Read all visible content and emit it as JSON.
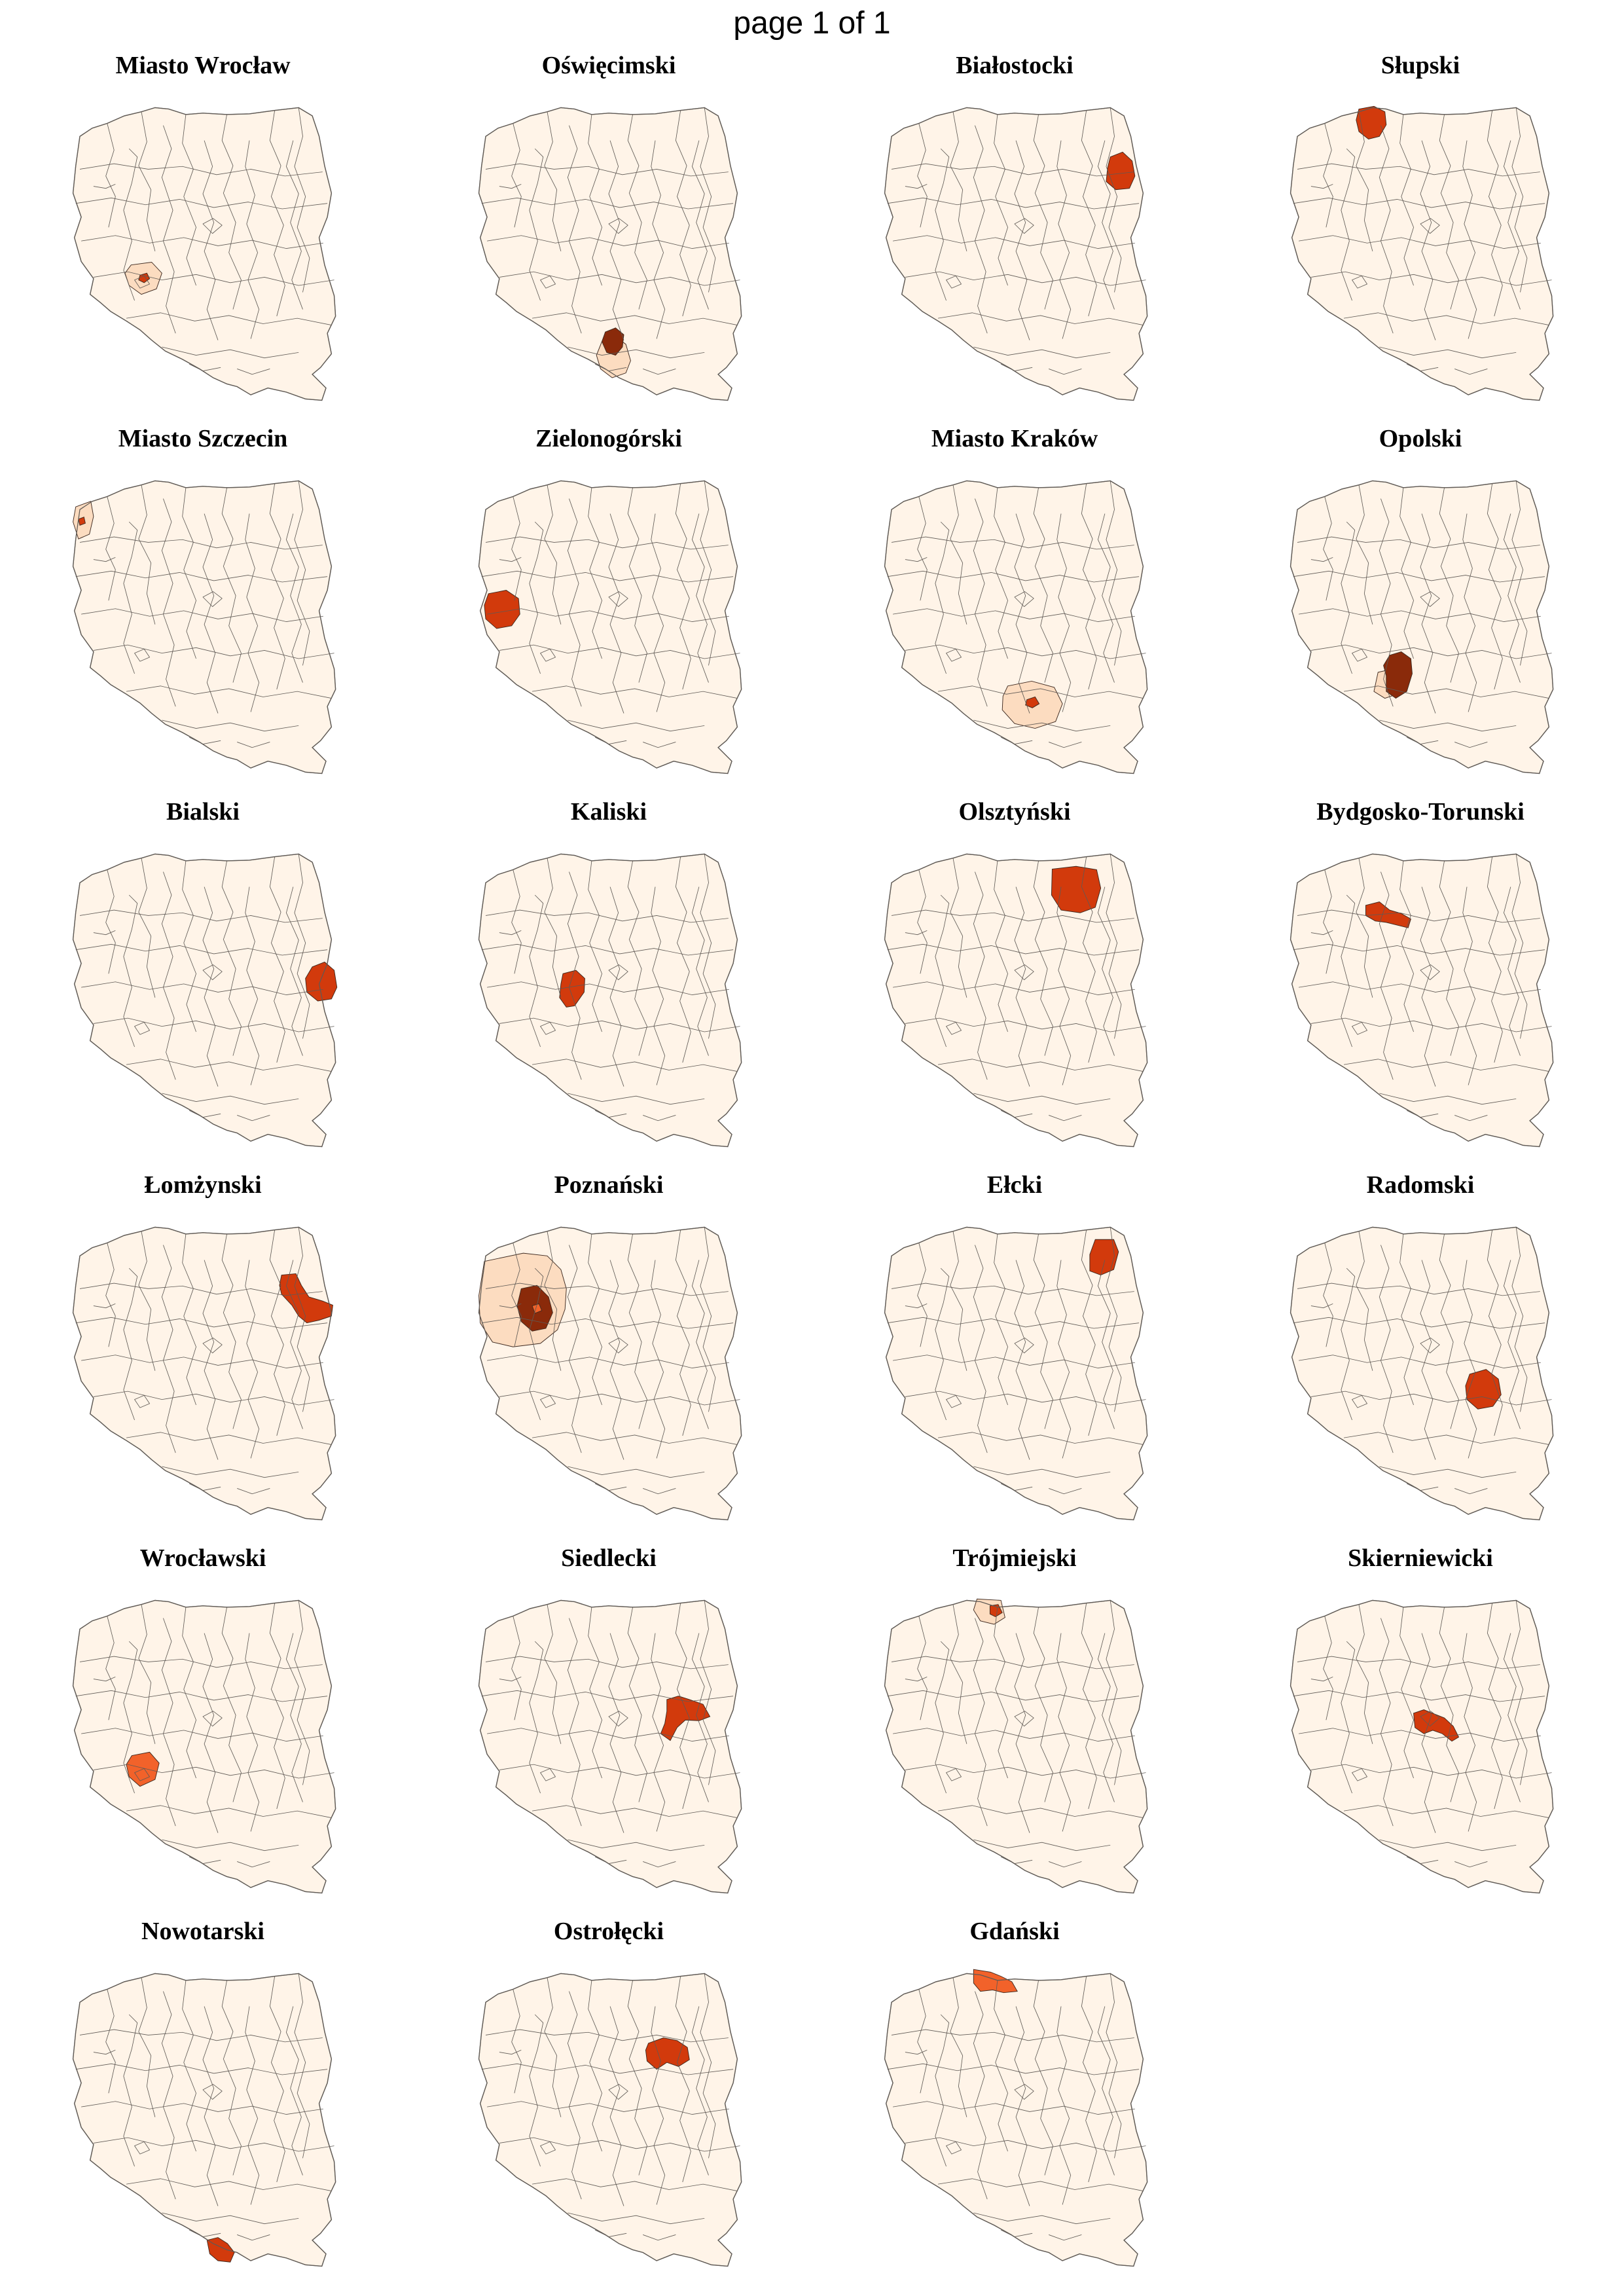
{
  "page": {
    "header": "page 1 of 1"
  },
  "colors": {
    "base": "#fff4e8",
    "border": "#5f5a55",
    "outline": "#8c8782",
    "light": "#fcdcc0",
    "medium": "#f2622a",
    "strong": "#d23a0c",
    "dark": "#8a2a0a"
  },
  "panels": [
    {
      "title": "Miasto Wrocław",
      "highlights": [
        {
          "region": "r_wroclaw_area",
          "level": "light"
        },
        {
          "region": "r_wroclaw_city",
          "level": "strong"
        }
      ]
    },
    {
      "title": "Oświęcimski",
      "highlights": [
        {
          "region": "r_oswiecim_area",
          "level": "light"
        },
        {
          "region": "r_oswiecim",
          "level": "dark"
        }
      ]
    },
    {
      "title": "Białostocki",
      "highlights": [
        {
          "region": "r_bialystok",
          "level": "strong"
        }
      ]
    },
    {
      "title": "Słupski",
      "highlights": [
        {
          "region": "r_slupsk",
          "level": "strong"
        }
      ]
    },
    {
      "title": "Miasto Szczecin",
      "highlights": [
        {
          "region": "r_szczecin_area",
          "level": "light"
        },
        {
          "region": "r_szczecin_city",
          "level": "strong"
        }
      ]
    },
    {
      "title": "Zielonogórski",
      "highlights": [
        {
          "region": "r_zielona",
          "level": "strong"
        }
      ]
    },
    {
      "title": "Miasto Kraków",
      "highlights": [
        {
          "region": "r_krakow_area",
          "level": "light"
        },
        {
          "region": "r_krakow_city",
          "level": "strong"
        }
      ]
    },
    {
      "title": "Opolski",
      "highlights": [
        {
          "region": "r_opole_area",
          "level": "light"
        },
        {
          "region": "r_opole",
          "level": "dark"
        }
      ]
    },
    {
      "title": "Bialski",
      "highlights": [
        {
          "region": "r_biala",
          "level": "strong"
        }
      ]
    },
    {
      "title": "Kaliski",
      "highlights": [
        {
          "region": "r_kalisz",
          "level": "strong"
        }
      ]
    },
    {
      "title": "Olsztyński",
      "highlights": [
        {
          "region": "r_olsztyn",
          "level": "strong"
        }
      ]
    },
    {
      "title": "Bydgosko-Torunski",
      "highlights": [
        {
          "region": "r_bydgoszcz",
          "level": "strong"
        }
      ]
    },
    {
      "title": "Łomżynski",
      "highlights": [
        {
          "region": "r_lomza",
          "level": "strong"
        }
      ]
    },
    {
      "title": "Poznański",
      "highlights": [
        {
          "region": "r_poznan_area",
          "level": "light"
        },
        {
          "region": "r_poznan",
          "level": "dark"
        },
        {
          "region": "r_poznan_city",
          "level": "medium"
        }
      ]
    },
    {
      "title": "Ełcki",
      "highlights": [
        {
          "region": "r_elk",
          "level": "strong"
        }
      ]
    },
    {
      "title": "Radomski",
      "highlights": [
        {
          "region": "r_radom",
          "level": "strong"
        }
      ]
    },
    {
      "title": "Wrocławski",
      "highlights": [
        {
          "region": "r_wroclawski",
          "level": "medium"
        }
      ]
    },
    {
      "title": "Siedlecki",
      "highlights": [
        {
          "region": "r_siedlce",
          "level": "strong"
        }
      ]
    },
    {
      "title": "Trójmiejski",
      "highlights": [
        {
          "region": "r_trojmiasto_area",
          "level": "light"
        },
        {
          "region": "r_trojmiasto",
          "level": "strong"
        }
      ]
    },
    {
      "title": "Skierniewicki",
      "highlights": [
        {
          "region": "r_skierniewice",
          "level": "strong"
        }
      ]
    },
    {
      "title": "Nowotarski",
      "highlights": [
        {
          "region": "r_nowy_targ",
          "level": "strong"
        }
      ]
    },
    {
      "title": "Ostrołęcki",
      "highlights": [
        {
          "region": "r_ostroleka",
          "level": "strong"
        }
      ]
    },
    {
      "title": "Gdański",
      "highlights": [
        {
          "region": "r_gdansk",
          "level": "medium"
        }
      ]
    }
  ]
}
